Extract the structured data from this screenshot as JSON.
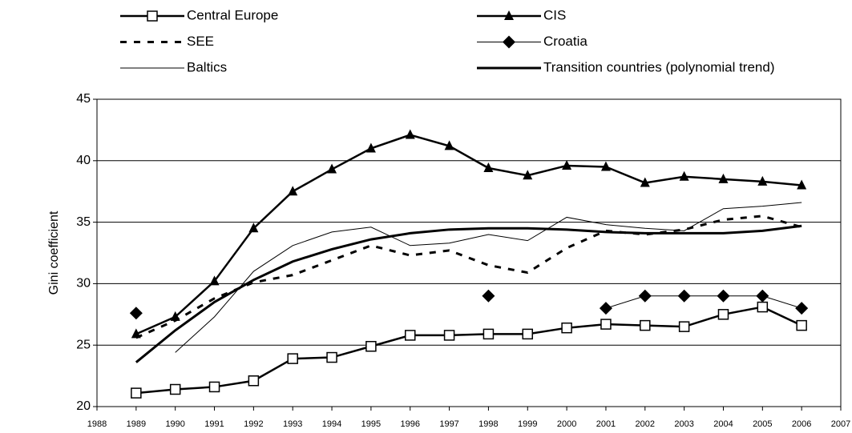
{
  "chart_data": {
    "type": "line",
    "y_label": "Gini coefficient",
    "x": [
      1989,
      1990,
      1991,
      1992,
      1993,
      1994,
      1995,
      1996,
      1997,
      1998,
      1999,
      2000,
      2001,
      2002,
      2003,
      2004,
      2005,
      2006
    ],
    "xlim": [
      1988,
      2007
    ],
    "xticks": [
      1988,
      1989,
      1990,
      1991,
      1992,
      1993,
      1994,
      1995,
      1996,
      1997,
      1998,
      1999,
      2000,
      2001,
      2002,
      2003,
      2004,
      2005,
      2006,
      2007
    ],
    "ylim": [
      20,
      45
    ],
    "yticks": [
      20,
      25,
      30,
      35,
      40,
      45
    ],
    "grid": true,
    "series": [
      {
        "name": "Central Europe",
        "color": "#000000",
        "width": 2.5,
        "marker": "square",
        "values": [
          21.1,
          21.4,
          21.6,
          22.1,
          23.9,
          24.0,
          24.9,
          25.8,
          25.8,
          25.9,
          25.9,
          26.4,
          26.7,
          26.6,
          26.5,
          27.5,
          28.1,
          26.6
        ]
      },
      {
        "name": "CIS",
        "color": "#000000",
        "width": 2.5,
        "marker": "triangle",
        "values": [
          25.9,
          27.3,
          30.2,
          34.5,
          37.5,
          39.3,
          41.0,
          42.1,
          41.2,
          39.4,
          38.8,
          39.6,
          39.5,
          38.2,
          38.7,
          38.5,
          38.3,
          38.0
        ]
      },
      {
        "name": "SEE",
        "color": "#000000",
        "width": 3,
        "dash": "8 9",
        "values": [
          25.6,
          27.0,
          28.8,
          30.1,
          30.7,
          31.9,
          33.1,
          32.3,
          32.7,
          31.5,
          30.9,
          32.9,
          34.3,
          34.0,
          34.4,
          35.2,
          35.5,
          34.6
        ]
      },
      {
        "name": "Croatia",
        "color": "#000000",
        "width": 1,
        "marker": "diamond",
        "values": [
          27.6,
          null,
          null,
          null,
          null,
          null,
          null,
          null,
          null,
          29.0,
          null,
          null,
          28.0,
          29.0,
          29.0,
          29.0,
          29.0,
          28.0
        ]
      },
      {
        "name": "Baltics",
        "color": "#000000",
        "width": 1,
        "values": [
          null,
          24.4,
          27.3,
          31.0,
          33.1,
          34.2,
          34.6,
          33.1,
          33.3,
          34.0,
          33.5,
          35.4,
          34.8,
          34.5,
          34.3,
          36.1,
          36.3,
          36.6
        ]
      },
      {
        "name": "Transition countries (polynomial trend)",
        "color": "#000000",
        "width": 3,
        "values": [
          23.6,
          26.2,
          28.5,
          30.3,
          31.8,
          32.8,
          33.6,
          34.1,
          34.4,
          34.5,
          34.5,
          34.4,
          34.2,
          34.1,
          34.1,
          34.1,
          34.3,
          34.7
        ]
      }
    ]
  }
}
